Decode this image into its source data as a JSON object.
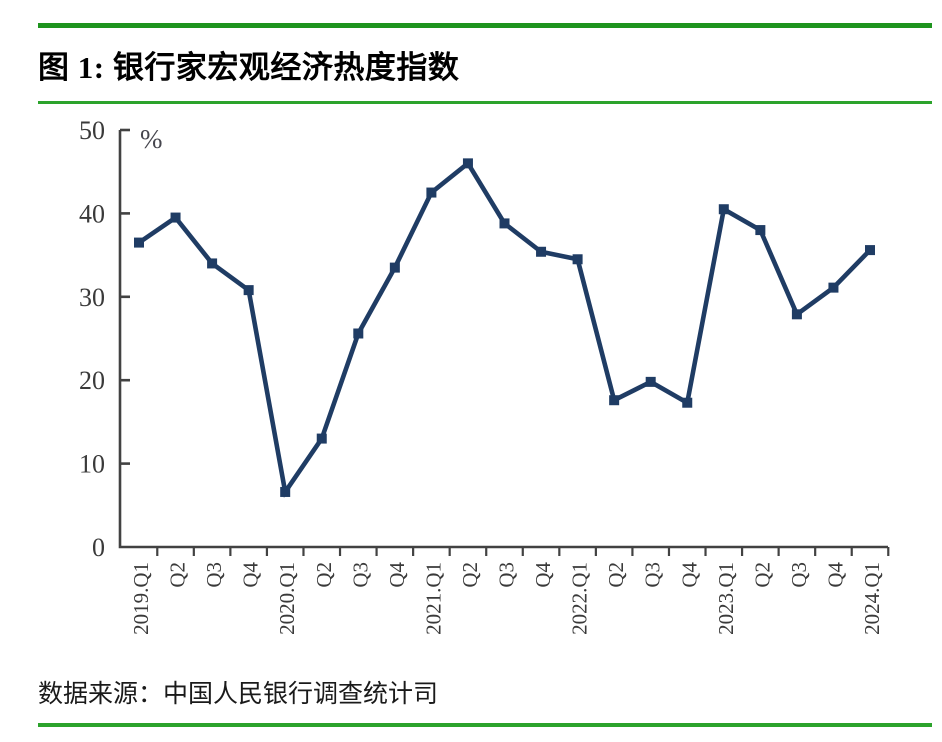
{
  "header": {
    "title": "图 1: 银行家宏观经济热度指数"
  },
  "footer": {
    "source": "数据来源：中国人民银行调查统计司"
  },
  "theme": {
    "rule_color_top": "#1e941e",
    "rule_color_thin": "#2ca32c",
    "background": "#ffffff"
  },
  "chart_data": {
    "type": "line",
    "title": "图 1: 银行家宏观经济热度指数",
    "ylabel": "%",
    "xlabel": "",
    "categories": [
      "2019.Q1",
      "Q2",
      "Q3",
      "Q4",
      "2020.Q1",
      "Q2",
      "Q3",
      "Q4",
      "2021.Q1",
      "Q2",
      "Q3",
      "Q4",
      "2022.Q1",
      "Q2",
      "Q3",
      "Q4",
      "2023.Q1",
      "Q2",
      "Q3",
      "Q4",
      "2024.Q1"
    ],
    "series": [
      {
        "name": "银行家宏观经济热度指数",
        "values": [
          36.5,
          39.5,
          34.0,
          30.8,
          6.6,
          13.0,
          25.6,
          33.5,
          42.5,
          46.0,
          38.8,
          35.4,
          34.5,
          17.6,
          19.8,
          17.3,
          40.5,
          38.0,
          27.9,
          31.1,
          35.6
        ]
      }
    ],
    "ylim": [
      0,
      50
    ],
    "yticks": [
      0,
      10,
      20,
      30,
      40,
      50
    ],
    "grid": false,
    "legend_position": "none",
    "line_color": "#1f3c64",
    "marker_shape": "square",
    "axis_color": "#424242",
    "tick_label_color": "#3a3a3a",
    "unit_label_color": "#46464e"
  }
}
